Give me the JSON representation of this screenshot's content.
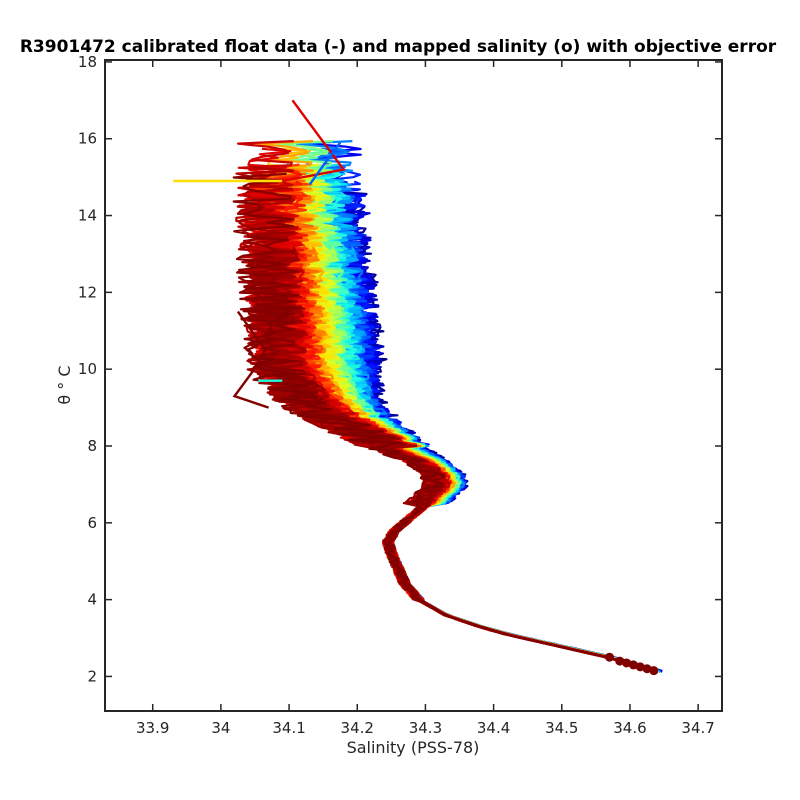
{
  "chart_data": {
    "type": "line",
    "title": "R3901472 calibrated float data (-) and mapped salinity (o) with objective error",
    "xlabel": "Salinity (PSS-78)",
    "ylabel": "θ ° C",
    "xlim": [
      33.83,
      34.735
    ],
    "ylim": [
      1.1,
      18.05
    ],
    "xticks": [
      "33.9",
      "34",
      "34.1",
      "34.2",
      "34.3",
      "34.4",
      "34.5",
      "34.6",
      "34.7"
    ],
    "yticks": [
      "2",
      "4",
      "6",
      "8",
      "10",
      "12",
      "14",
      "16",
      "18"
    ],
    "grid": false,
    "legend": "none",
    "colormap": [
      "#00008f",
      "#0000ff",
      "#0060ff",
      "#00bfff",
      "#20ffdf",
      "#80ff80",
      "#dfff20",
      "#ffdf00",
      "#ff8000",
      "#ff2000",
      "#df0000",
      "#800000"
    ],
    "profile_count": 160,
    "central_profile": {
      "theta": [
        2.15,
        2.3,
        2.5,
        2.7,
        2.9,
        3.1,
        3.3,
        3.6,
        4.0,
        4.4,
        4.8,
        5.2,
        5.5,
        5.8,
        6.1,
        6.4,
        6.7,
        7.0,
        7.3,
        7.6,
        8.0,
        8.5,
        9.0,
        9.5,
        10.0,
        11.0,
        12.0,
        13.0,
        14.0,
        15.0,
        16.0
      ],
      "salinity": [
        34.64,
        34.61,
        34.57,
        34.52,
        34.47,
        34.42,
        34.38,
        34.33,
        34.29,
        34.27,
        34.26,
        34.25,
        34.245,
        34.255,
        34.275,
        34.295,
        34.315,
        34.33,
        34.325,
        34.3,
        34.25,
        34.2,
        34.155,
        34.135,
        34.12,
        34.115,
        34.11,
        34.105,
        34.1,
        34.1,
        34.1
      ]
    },
    "outlier_segments": [
      {
        "theta": [
          14.9,
          14.9
        ],
        "salinity": [
          33.93,
          34.09
        ],
        "color": "#ffdf00"
      },
      {
        "theta": [
          17.0,
          15.2,
          14.9
        ],
        "salinity": [
          34.105,
          34.18,
          34.09
        ],
        "color": "#df0000"
      },
      {
        "theta": [
          15.9,
          15.3,
          14.8
        ],
        "salinity": [
          34.175,
          34.15,
          34.13
        ],
        "color": "#0060ff"
      },
      {
        "theta": [
          11.5,
          10.5,
          9.9,
          9.3,
          9.0
        ],
        "salinity": [
          34.025,
          34.065,
          34.045,
          34.02,
          34.07
        ],
        "color": "#800000"
      },
      {
        "theta": [
          9.7,
          9.7
        ],
        "salinity": [
          34.055,
          34.09
        ],
        "color": "#20ffdf"
      }
    ],
    "mapped_salinity_points": {
      "theta": [
        2.15,
        2.2,
        2.25,
        2.3,
        2.35,
        2.4,
        2.5
      ],
      "salinity": [
        34.635,
        34.625,
        34.615,
        34.605,
        34.595,
        34.585,
        34.57
      ],
      "color": "#800000"
    }
  }
}
